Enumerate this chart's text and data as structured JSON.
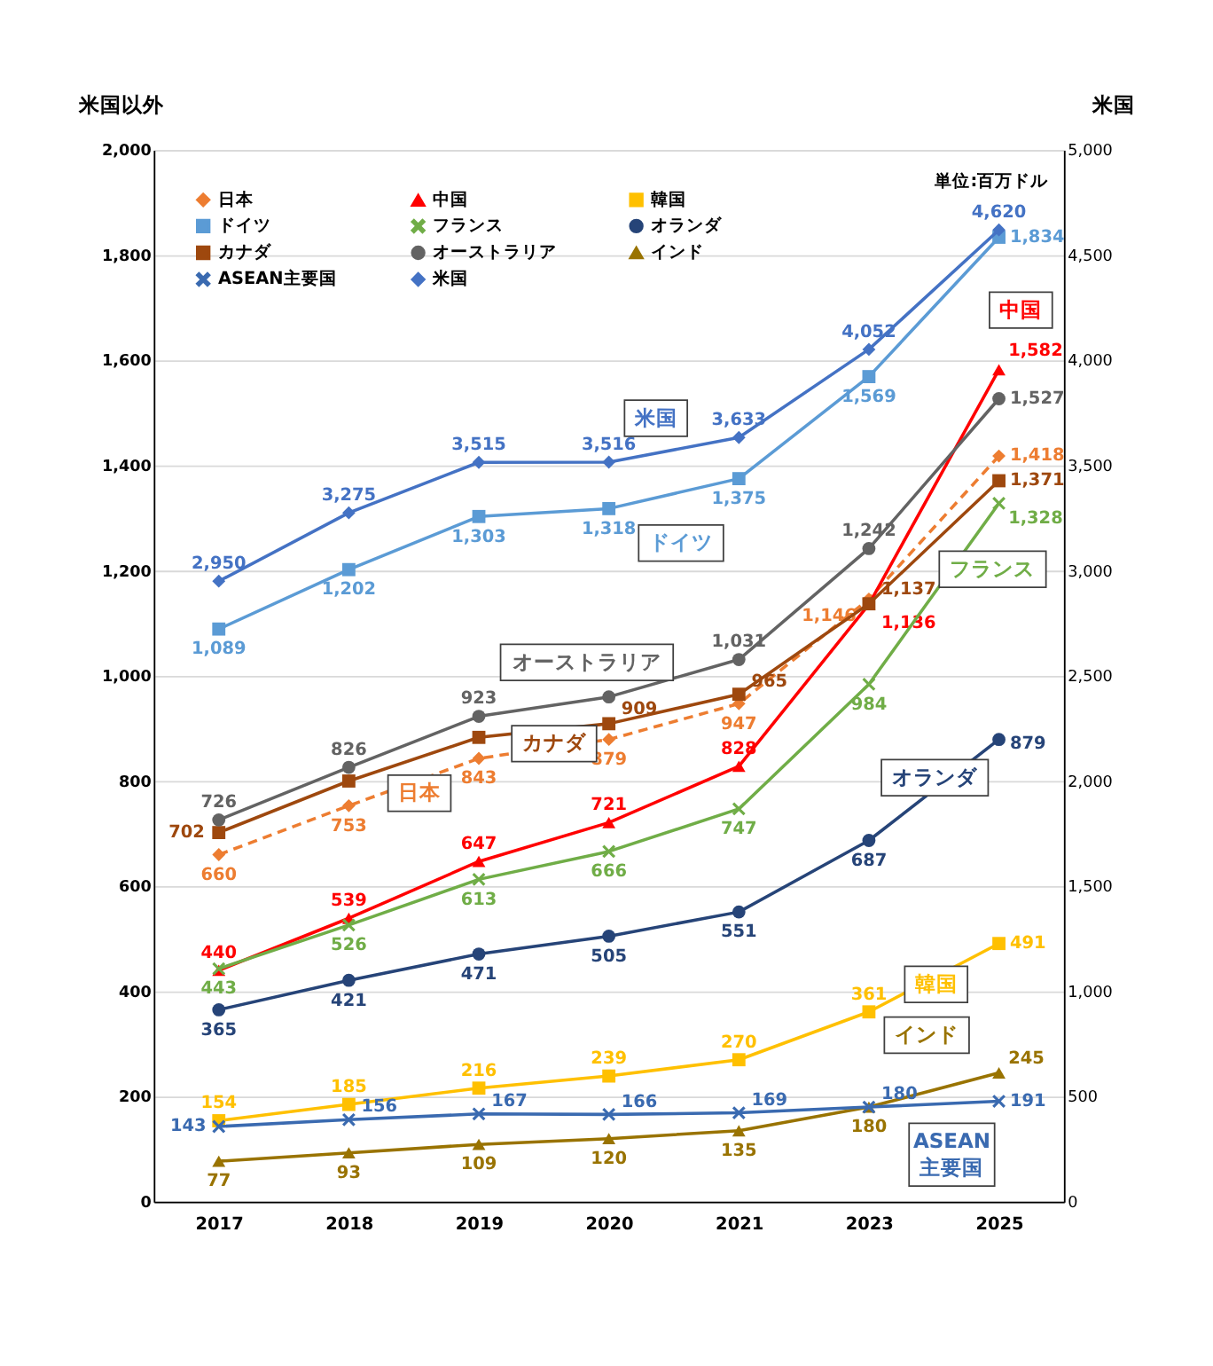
{
  "chart_data": {
    "type": "line",
    "ylabel": "米国以外",
    "y2label": "米国",
    "categories": [
      "2017",
      "2018",
      "2019",
      "2020",
      "2021",
      "2023",
      "2025"
    ],
    "ylim": [
      0,
      2000
    ],
    "yticks": [
      0,
      {
        "value": 200,
        "label": "200"
      },
      {
        "value": 400,
        "label": "400"
      },
      {
        "value": 600,
        "label": "600"
      },
      {
        "value": 800,
        "label": "800"
      },
      {
        "value": 1000,
        "label": "1,000"
      },
      {
        "value": 1200,
        "label": "1,200"
      },
      {
        "value": 1400,
        "label": "1,400"
      },
      {
        "value": 1600,
        "label": "1,600"
      },
      {
        "value": 1800,
        "label": "1,800"
      },
      {
        "value": 2000,
        "label": "2,000"
      }
    ],
    "y2lim": [
      0,
      5000
    ],
    "y2ticks": [
      0,
      {
        "value": 500,
        "label": "500"
      },
      {
        "value": 1000,
        "label": "1,000"
      },
      {
        "value": 1500,
        "label": "1,500"
      },
      {
        "value": 2000,
        "label": "2,000"
      },
      {
        "value": 2500,
        "label": "2,500"
      },
      {
        "value": 3000,
        "label": "3,000"
      },
      {
        "value": 3500,
        "label": "3,500"
      },
      {
        "value": 4000,
        "label": "4,000"
      },
      {
        "value": 4500,
        "label": "4,500"
      },
      {
        "value": 5000,
        "label": "5,000"
      }
    ],
    "grid": "y",
    "legend": "top left",
    "series": [
      {
        "name": "日本",
        "color": "#ed7d31",
        "marker": "diamond",
        "line_style": "dashed",
        "values": [
          660,
          753,
          843,
          879,
          947,
          1146,
          1418
        ],
        "value_labels": [
          "660",
          "753",
          "843",
          "879",
          "947",
          "1,146",
          "1,418"
        ]
      },
      {
        "name": "中国",
        "color": "#ff0000",
        "marker": "triangle",
        "line_style": "solid",
        "values": [
          440,
          539,
          647,
          721,
          828,
          1136,
          1582
        ],
        "value_labels": [
          "440",
          "539",
          "647",
          "721",
          "828",
          "1,136",
          "1,582"
        ]
      },
      {
        "name": "韓国",
        "color": "#ffc000",
        "marker": "square",
        "line_style": "solid",
        "values": [
          154,
          185,
          216,
          239,
          270,
          361,
          491
        ],
        "value_labels": [
          "154",
          "185",
          "216",
          "239",
          "270",
          "361",
          "491"
        ]
      },
      {
        "name": "ドイツ",
        "color": "#5b9bd5",
        "marker": "square",
        "line_style": "solid",
        "values": [
          1089,
          1202,
          1303,
          1318,
          1375,
          1569,
          1834
        ],
        "value_labels": [
          "1,089",
          "1,202",
          "1,303",
          "1,318",
          "1,375",
          "1,569",
          "1,834"
        ]
      },
      {
        "name": "フランス",
        "color": "#70ad47",
        "marker": "cross",
        "line_style": "solid",
        "values": [
          443,
          526,
          613,
          666,
          747,
          984,
          1328
        ],
        "value_labels": [
          "443",
          "526",
          "613",
          "666",
          "747",
          "984",
          "1,328"
        ]
      },
      {
        "name": "オランダ",
        "color": "#264478",
        "marker": "circle",
        "line_style": "solid",
        "values": [
          365,
          421,
          471,
          505,
          551,
          687,
          879
        ],
        "value_labels": [
          "365",
          "421",
          "471",
          "505",
          "551",
          "687",
          "879"
        ]
      },
      {
        "name": "カナダ",
        "color": "#9e480e",
        "marker": "square",
        "line_style": "solid",
        "values": [
          702,
          800,
          883,
          909,
          965,
          1137,
          1371
        ],
        "value_labels": [
          "702",
          null,
          null,
          "909",
          "965",
          "1,137",
          "1,371"
        ]
      },
      {
        "name": "オーストラリア",
        "color": "#636363",
        "marker": "circle",
        "line_style": "solid",
        "values": [
          726,
          826,
          923,
          960,
          1031,
          1242,
          1527
        ],
        "value_labels": [
          "726",
          "826",
          "923",
          null,
          "1,031",
          "1,242",
          "1,527"
        ]
      },
      {
        "name": "インド",
        "color": "#997300",
        "marker": "triangle",
        "line_style": "solid",
        "values": [
          77,
          93,
          109,
          120,
          135,
          180,
          245
        ],
        "value_labels": [
          "77",
          "93",
          "109",
          "120",
          "135",
          "180",
          "245"
        ]
      },
      {
        "name": "ASEAN主要国",
        "color": "#3a6ab0",
        "marker": "cross",
        "line_style": "solid",
        "values": [
          143,
          156,
          167,
          166,
          169,
          180,
          191
        ],
        "value_labels": [
          "143",
          "156",
          "167",
          "166",
          "169",
          "180",
          "191"
        ]
      },
      {
        "name": "米国",
        "color": "#4472c4",
        "marker": "diamond",
        "line_style": "solid",
        "axis": "y2",
        "values": [
          2950,
          3275,
          3515,
          3516,
          3633,
          4052,
          4620
        ],
        "value_labels": [
          "2,950",
          "3,275",
          "3,515",
          "3,516",
          "3,633",
          "4,052",
          "4,620"
        ]
      }
    ],
    "annotations": [
      "単位:百万ドル"
    ]
  }
}
